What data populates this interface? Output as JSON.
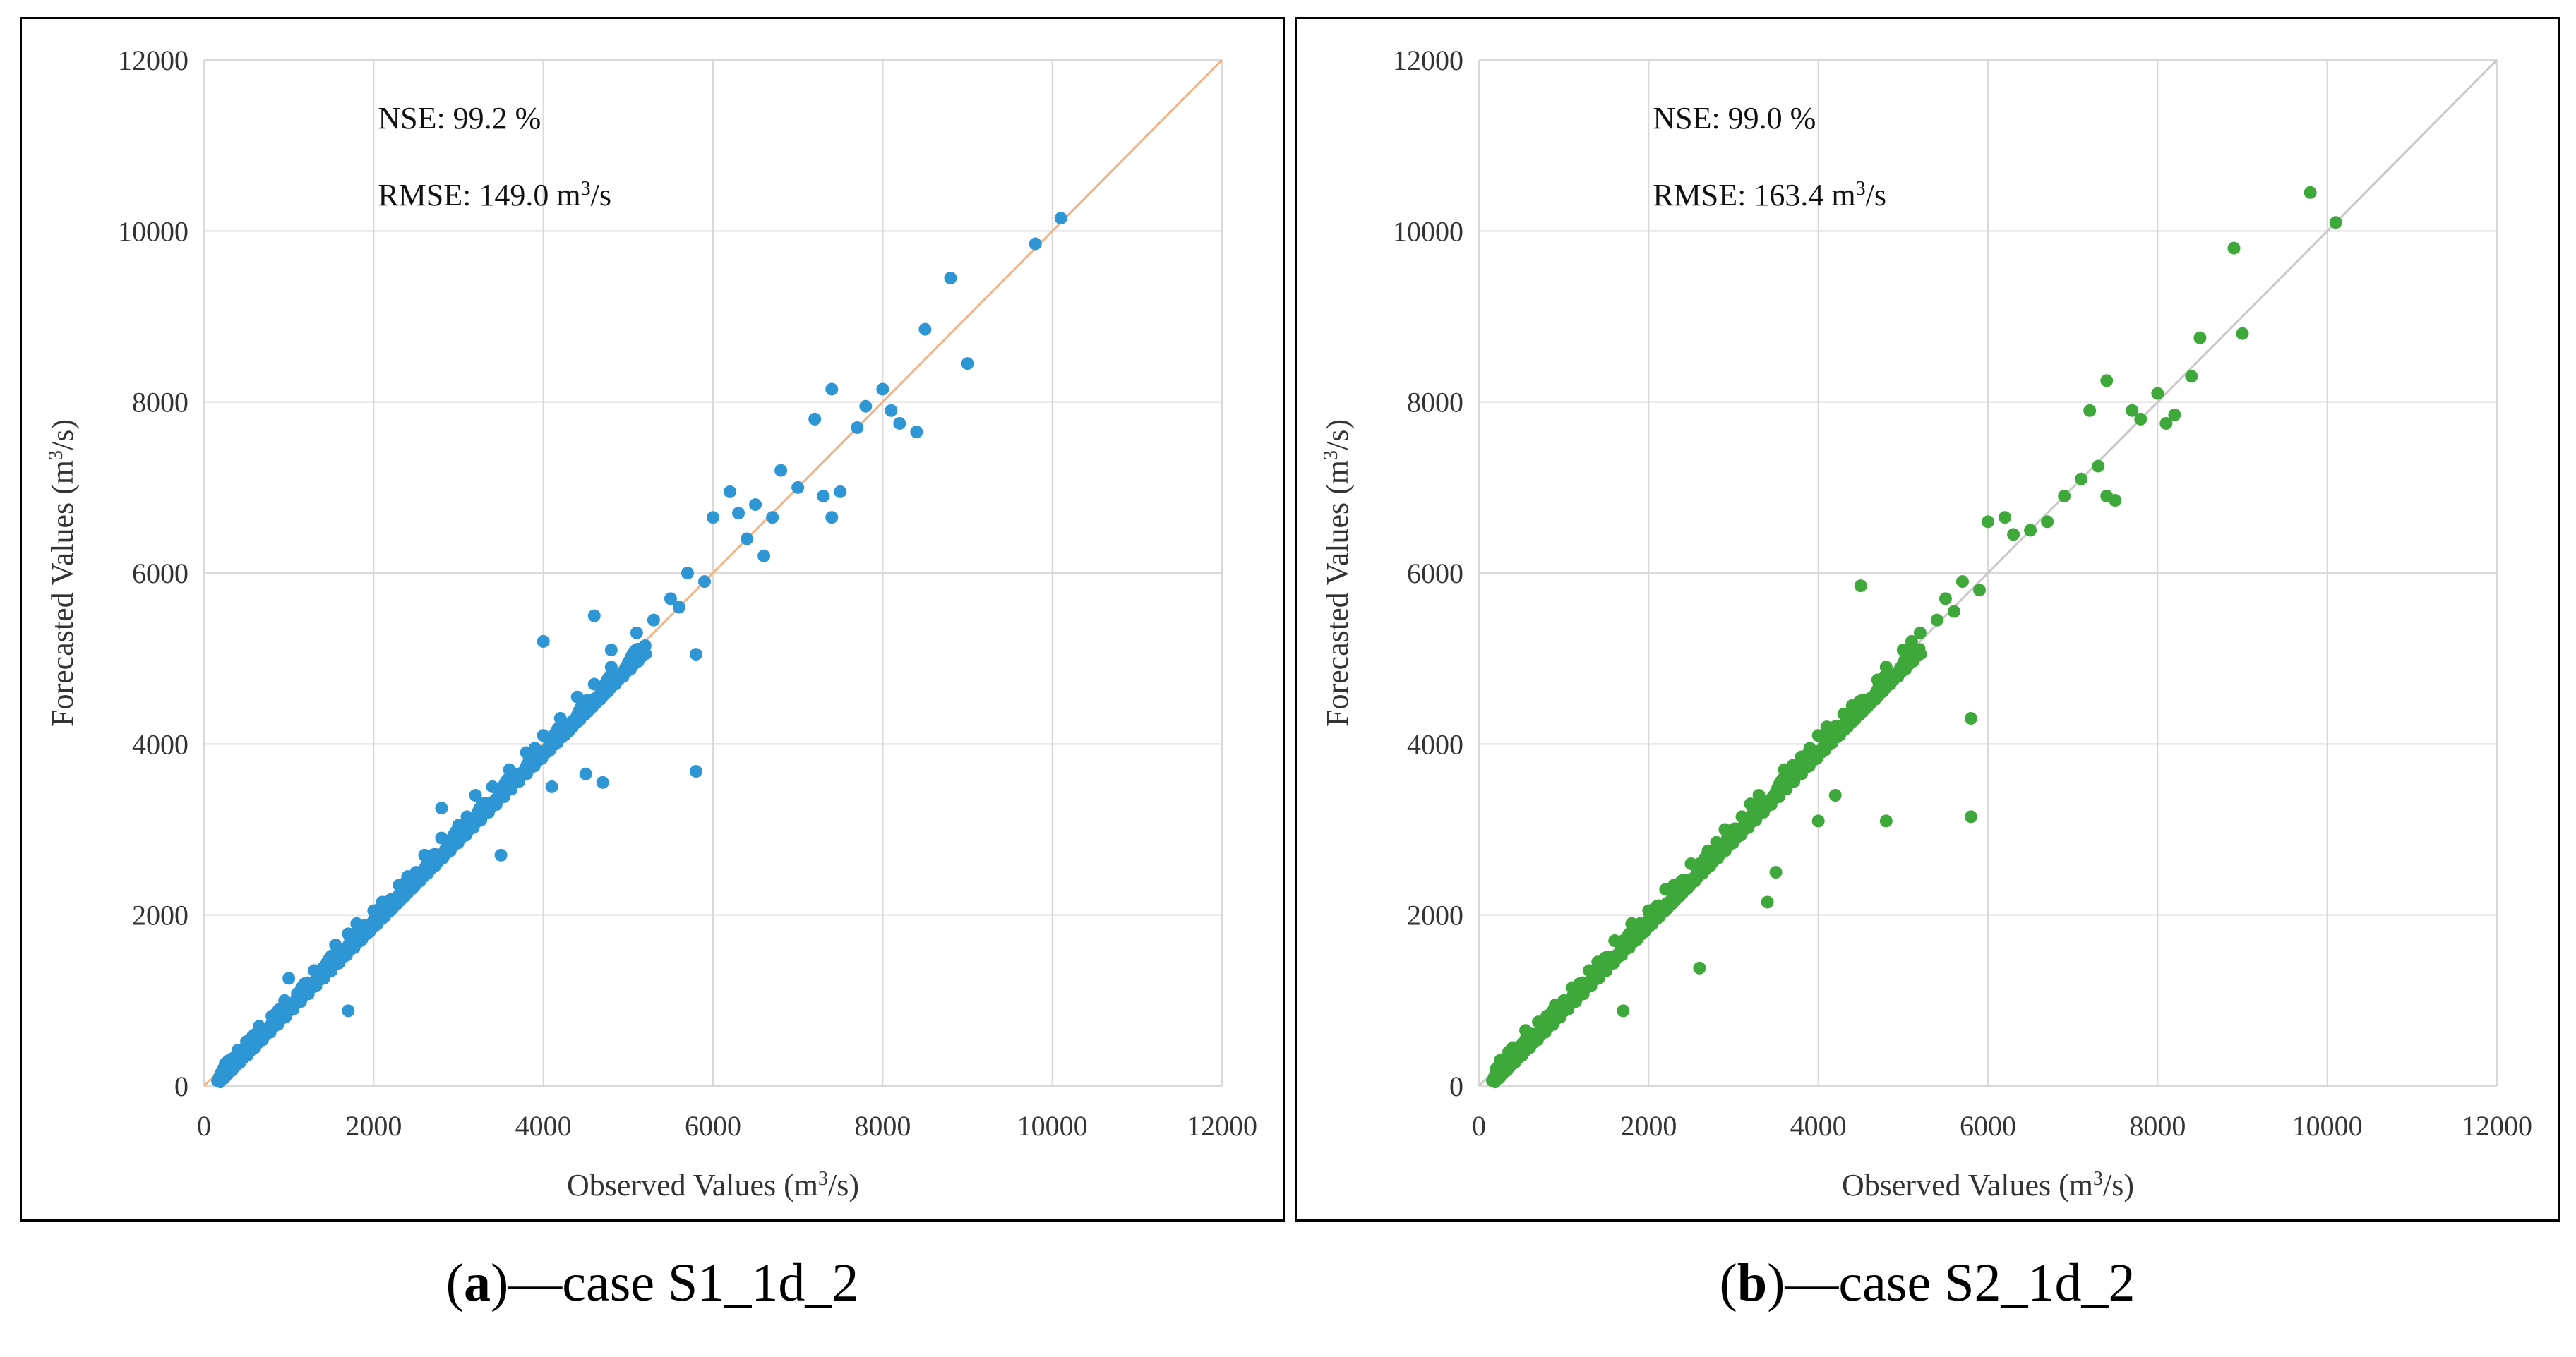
{
  "chart_data": [
    {
      "type": "scatter",
      "panel": "a",
      "caption": "case S1_1d_2",
      "xlabel": "Observed Values",
      "ylabel": "Forecasted Values",
      "unit_base": "(m",
      "unit_sup": "3",
      "unit_tail": "/s)",
      "xlim": [
        0,
        12000
      ],
      "ylim": [
        0,
        12000
      ],
      "xticks": [
        0,
        2000,
        4000,
        6000,
        8000,
        10000,
        12000
      ],
      "yticks": [
        0,
        2000,
        4000,
        6000,
        8000,
        10000,
        12000
      ],
      "grid": true,
      "point_color": "#2e96d4",
      "line_color": "#f4b183",
      "reference_line": [
        [
          0,
          0
        ],
        [
          12000,
          12000
        ]
      ],
      "nse_label": "NSE:  99.2 %",
      "rmse_label": "RMSE: 149.0 m",
      "rmse_sup": "3",
      "rmse_tail": "/s",
      "points": [
        [
          200,
          150
        ],
        [
          250,
          260
        ],
        [
          300,
          220
        ],
        [
          350,
          330
        ],
        [
          400,
          420
        ],
        [
          450,
          380
        ],
        [
          500,
          520
        ],
        [
          600,
          580
        ],
        [
          650,
          700
        ],
        [
          700,
          640
        ],
        [
          800,
          820
        ],
        [
          900,
          880
        ],
        [
          950,
          1000
        ],
        [
          1000,
          1260
        ],
        [
          1100,
          1080
        ],
        [
          1200,
          1180
        ],
        [
          1300,
          1350
        ],
        [
          1400,
          1380
        ],
        [
          1500,
          1520
        ],
        [
          1550,
          1650
        ],
        [
          1600,
          1560
        ],
        [
          1700,
          880
        ],
        [
          1700,
          1780
        ],
        [
          1800,
          1900
        ],
        [
          1900,
          1880
        ],
        [
          2000,
          2050
        ],
        [
          2100,
          2150
        ],
        [
          2200,
          2180
        ],
        [
          2300,
          2350
        ],
        [
          2400,
          2450
        ],
        [
          2500,
          2500
        ],
        [
          2600,
          2700
        ],
        [
          2700,
          2600
        ],
        [
          2800,
          2900
        ],
        [
          2800,
          3250
        ],
        [
          2900,
          2850
        ],
        [
          3000,
          3050
        ],
        [
          3100,
          3150
        ],
        [
          3200,
          3400
        ],
        [
          3300,
          3200
        ],
        [
          3400,
          3500
        ],
        [
          3500,
          3400
        ],
        [
          3500,
          2700
        ],
        [
          3600,
          3700
        ],
        [
          3700,
          3650
        ],
        [
          3800,
          3900
        ],
        [
          3900,
          3950
        ],
        [
          4000,
          4100
        ],
        [
          4000,
          5200
        ],
        [
          4100,
          3500
        ],
        [
          4200,
          4300
        ],
        [
          4300,
          4150
        ],
        [
          4400,
          4550
        ],
        [
          4500,
          3650
        ],
        [
          4600,
          4700
        ],
        [
          4600,
          5500
        ],
        [
          4700,
          3550
        ],
        [
          4800,
          4900
        ],
        [
          4800,
          5100
        ],
        [
          5000,
          4950
        ],
        [
          5100,
          5300
        ],
        [
          5200,
          5150
        ],
        [
          5300,
          5450
        ],
        [
          5500,
          5700
        ],
        [
          5600,
          5600
        ],
        [
          5700,
          6000
        ],
        [
          5800,
          3680
        ],
        [
          5800,
          5050
        ],
        [
          5900,
          5900
        ],
        [
          6000,
          6650
        ],
        [
          6200,
          6950
        ],
        [
          6300,
          6700
        ],
        [
          6400,
          6400
        ],
        [
          6500,
          6800
        ],
        [
          6600,
          6200
        ],
        [
          6700,
          6650
        ],
        [
          6800,
          7200
        ],
        [
          7000,
          7000
        ],
        [
          7200,
          7800
        ],
        [
          7300,
          6900
        ],
        [
          7400,
          6650
        ],
        [
          7400,
          8150
        ],
        [
          7500,
          6950
        ],
        [
          7700,
          7700
        ],
        [
          7800,
          7950
        ],
        [
          8000,
          8150
        ],
        [
          8100,
          7900
        ],
        [
          8200,
          7750
        ],
        [
          8400,
          7650
        ],
        [
          8500,
          8850
        ],
        [
          8800,
          9450
        ],
        [
          9000,
          8450
        ],
        [
          9800,
          9850
        ],
        [
          10100,
          10150
        ]
      ]
    },
    {
      "type": "scatter",
      "panel": "b",
      "caption": "case S2_1d_2",
      "xlabel": "Observed Values",
      "ylabel": "Forecasted Values",
      "unit_base": "(m",
      "unit_sup": "3",
      "unit_tail": "/s)",
      "xlim": [
        0,
        12000
      ],
      "ylim": [
        0,
        12000
      ],
      "xticks": [
        0,
        2000,
        4000,
        6000,
        8000,
        10000,
        12000
      ],
      "yticks": [
        0,
        2000,
        4000,
        6000,
        8000,
        10000,
        12000
      ],
      "grid": true,
      "point_color": "#3ea83a",
      "line_color": "#c8c8c8",
      "reference_line": [
        [
          0,
          0
        ],
        [
          12000,
          12000
        ]
      ],
      "nse_label": "NSE:  99.0 %",
      "rmse_label": "RMSE: 163.4 m",
      "rmse_sup": "3",
      "rmse_tail": "/s",
      "points": [
        [
          200,
          200
        ],
        [
          250,
          300
        ],
        [
          300,
          280
        ],
        [
          350,
          400
        ],
        [
          400,
          450
        ],
        [
          500,
          480
        ],
        [
          550,
          650
        ],
        [
          600,
          600
        ],
        [
          700,
          750
        ],
        [
          800,
          820
        ],
        [
          900,
          950
        ],
        [
          1000,
          1000
        ],
        [
          1100,
          1150
        ],
        [
          1200,
          1200
        ],
        [
          1300,
          1350
        ],
        [
          1400,
          1450
        ],
        [
          1500,
          1500
        ],
        [
          1600,
          1700
        ],
        [
          1700,
          880
        ],
        [
          1700,
          1700
        ],
        [
          1800,
          1900
        ],
        [
          1900,
          1900
        ],
        [
          2000,
          2050
        ],
        [
          2100,
          2100
        ],
        [
          2200,
          2300
        ],
        [
          2300,
          2350
        ],
        [
          2400,
          2400
        ],
        [
          2500,
          2600
        ],
        [
          2600,
          1380
        ],
        [
          2600,
          2600
        ],
        [
          2700,
          2750
        ],
        [
          2800,
          2850
        ],
        [
          2900,
          3000
        ],
        [
          3000,
          3000
        ],
        [
          3100,
          3150
        ],
        [
          3200,
          3300
        ],
        [
          3300,
          3400
        ],
        [
          3400,
          3300
        ],
        [
          3400,
          2150
        ],
        [
          3500,
          2500
        ],
        [
          3600,
          3700
        ],
        [
          3700,
          3750
        ],
        [
          3800,
          3850
        ],
        [
          3900,
          3950
        ],
        [
          4000,
          3100
        ],
        [
          4000,
          4100
        ],
        [
          4100,
          4200
        ],
        [
          4200,
          3400
        ],
        [
          4300,
          4350
        ],
        [
          4400,
          4450
        ],
        [
          4500,
          5850
        ],
        [
          4600,
          4500
        ],
        [
          4700,
          4750
        ],
        [
          4800,
          3100
        ],
        [
          4800,
          4900
        ],
        [
          5000,
          5100
        ],
        [
          5100,
          5200
        ],
        [
          5200,
          5300
        ],
        [
          5400,
          5450
        ],
        [
          5500,
          5700
        ],
        [
          5600,
          5550
        ],
        [
          5700,
          5900
        ],
        [
          5800,
          3150
        ],
        [
          5800,
          4300
        ],
        [
          5900,
          5800
        ],
        [
          6000,
          6600
        ],
        [
          6200,
          6650
        ],
        [
          6300,
          6450
        ],
        [
          6500,
          6500
        ],
        [
          6700,
          6600
        ],
        [
          6900,
          6900
        ],
        [
          7100,
          7100
        ],
        [
          7200,
          7900
        ],
        [
          7300,
          7250
        ],
        [
          7400,
          8250
        ],
        [
          7400,
          6900
        ],
        [
          7500,
          6850
        ],
        [
          7700,
          7900
        ],
        [
          7800,
          7800
        ],
        [
          8000,
          8100
        ],
        [
          8100,
          7750
        ],
        [
          8200,
          7850
        ],
        [
          8400,
          8300
        ],
        [
          8500,
          8750
        ],
        [
          8900,
          9800
        ],
        [
          9000,
          8800
        ],
        [
          9800,
          10450
        ],
        [
          10100,
          10100
        ]
      ]
    }
  ]
}
